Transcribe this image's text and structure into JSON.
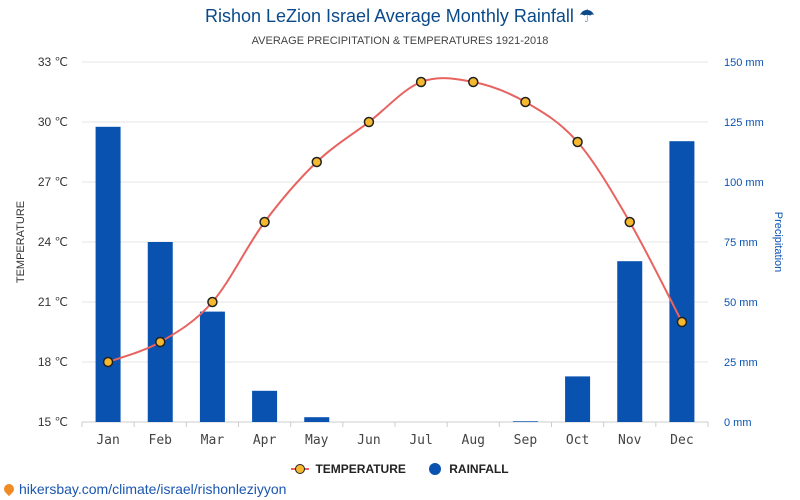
{
  "title": "Rishon LeZion Israel Average Monthly Rainfall ☂",
  "subtitle": "AVERAGE PRECIPITATION & TEMPERATURES 1921-2018",
  "source_link": "hikersbay.com/climate/israel/rishonleziyyon",
  "legend": {
    "temperature": "TEMPERATURE",
    "rainfall": "RAINFALL"
  },
  "colors": {
    "bar": "#0a52b0",
    "line": "#e8635f",
    "marker_fill": "#f5b82e",
    "left_axis_text": "#333333",
    "right_axis_text": "#0a52b0",
    "title": "#0a4a8a"
  },
  "chart_data": {
    "type": "bar",
    "categories": [
      "Jan",
      "Feb",
      "Mar",
      "Apr",
      "May",
      "Jun",
      "Jul",
      "Aug",
      "Sep",
      "Oct",
      "Nov",
      "Dec"
    ],
    "series": [
      {
        "name": "RAINFALL",
        "type": "bar",
        "axis": "right",
        "values": [
          123,
          75,
          46,
          13,
          2,
          0,
          0,
          0,
          0.3,
          19,
          67,
          117
        ]
      },
      {
        "name": "TEMPERATURE",
        "type": "line",
        "axis": "left",
        "values": [
          18,
          19,
          21,
          25,
          28,
          30,
          32,
          32,
          31,
          29,
          25,
          20
        ]
      }
    ],
    "y_left": {
      "label": "TEMPERATURE",
      "ylim": [
        15,
        33
      ],
      "ticks": [
        15,
        18,
        21,
        24,
        27,
        30,
        33
      ],
      "tick_labels": [
        "15 ℃",
        "18 ℃",
        "21 ℃",
        "24 ℃",
        "27 ℃",
        "30 ℃",
        "33 ℃"
      ]
    },
    "y_right": {
      "label": "Precipitation",
      "ylim": [
        0,
        150
      ],
      "ticks": [
        0,
        25,
        50,
        75,
        100,
        125,
        150
      ],
      "tick_labels": [
        "0 mm",
        "25 mm",
        "50 mm",
        "75 mm",
        "100 mm",
        "125 mm",
        "150 mm"
      ]
    },
    "grid": true,
    "legend_position": "bottom"
  }
}
